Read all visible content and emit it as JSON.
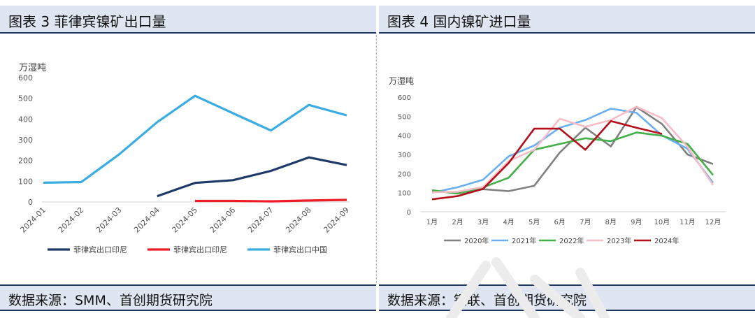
{
  "left": {
    "title": "图表 3 菲律宾镍矿出口量",
    "source": "数据来源：SMM、首创期货研究院"
  },
  "right": {
    "title": "图表 4  国内镍矿进口量",
    "source": "数据来源：钢联、首创期货研究院"
  },
  "chart_data": [
    {
      "type": "line",
      "ylabel": "万湿吨",
      "ylim": [
        0,
        600
      ],
      "yticks": [
        0,
        100,
        200,
        300,
        400,
        500,
        600
      ],
      "categories": [
        "2024-01",
        "2024-02",
        "2024-03",
        "2024-04",
        "2024-05",
        "2024-06",
        "2024-07",
        "2024-08",
        "2024-09"
      ],
      "grid": false,
      "legend": "bottom",
      "series": [
        {
          "name": "菲律宾出口印尼",
          "color": "#1f3a68",
          "values": [
            null,
            null,
            null,
            28,
            92,
            105,
            150,
            215,
            178
          ]
        },
        {
          "name": "菲律宾出口印尼",
          "color": "#ee1c25",
          "values": [
            null,
            null,
            null,
            null,
            5,
            5,
            3,
            7,
            10
          ]
        },
        {
          "name": "菲律宾出口中国",
          "color": "#3bace2",
          "values": [
            93,
            96,
            230,
            385,
            512,
            428,
            345,
            468,
            418
          ]
        }
      ]
    },
    {
      "type": "line",
      "ylabel": "万湿吨",
      "ylim": [
        0,
        600
      ],
      "yticks": [
        0,
        100,
        200,
        300,
        400,
        500,
        600
      ],
      "categories": [
        "1月",
        "2月",
        "3月",
        "4月",
        "5月",
        "6月",
        "7月",
        "8月",
        "9月",
        "10月",
        "11月",
        "12月"
      ],
      "grid": false,
      "legend": "bottom",
      "series": [
        {
          "name": "2020年",
          "color": "#808080",
          "values": [
            112,
            95,
            118,
            108,
            136,
            310,
            440,
            342,
            548,
            460,
            300,
            250
          ]
        },
        {
          "name": "2021年",
          "color": "#6aaff2",
          "values": [
            100,
            128,
            168,
            290,
            347,
            440,
            480,
            540,
            518,
            400,
            330,
            152
          ]
        },
        {
          "name": "2022年",
          "color": "#45b04a",
          "values": [
            113,
            95,
            128,
            178,
            325,
            355,
            385,
            370,
            415,
            398,
            355,
            192
          ]
        },
        {
          "name": "2023年",
          "color": "#f8bcc6",
          "values": [
            102,
            105,
            130,
            265,
            325,
            487,
            445,
            480,
            550,
            490,
            340,
            140
          ]
        },
        {
          "name": "2024年",
          "color": "#b40f1a",
          "values": [
            65,
            82,
            120,
            255,
            435,
            435,
            325,
            475,
            440,
            408,
            null,
            null
          ]
        }
      ]
    }
  ]
}
